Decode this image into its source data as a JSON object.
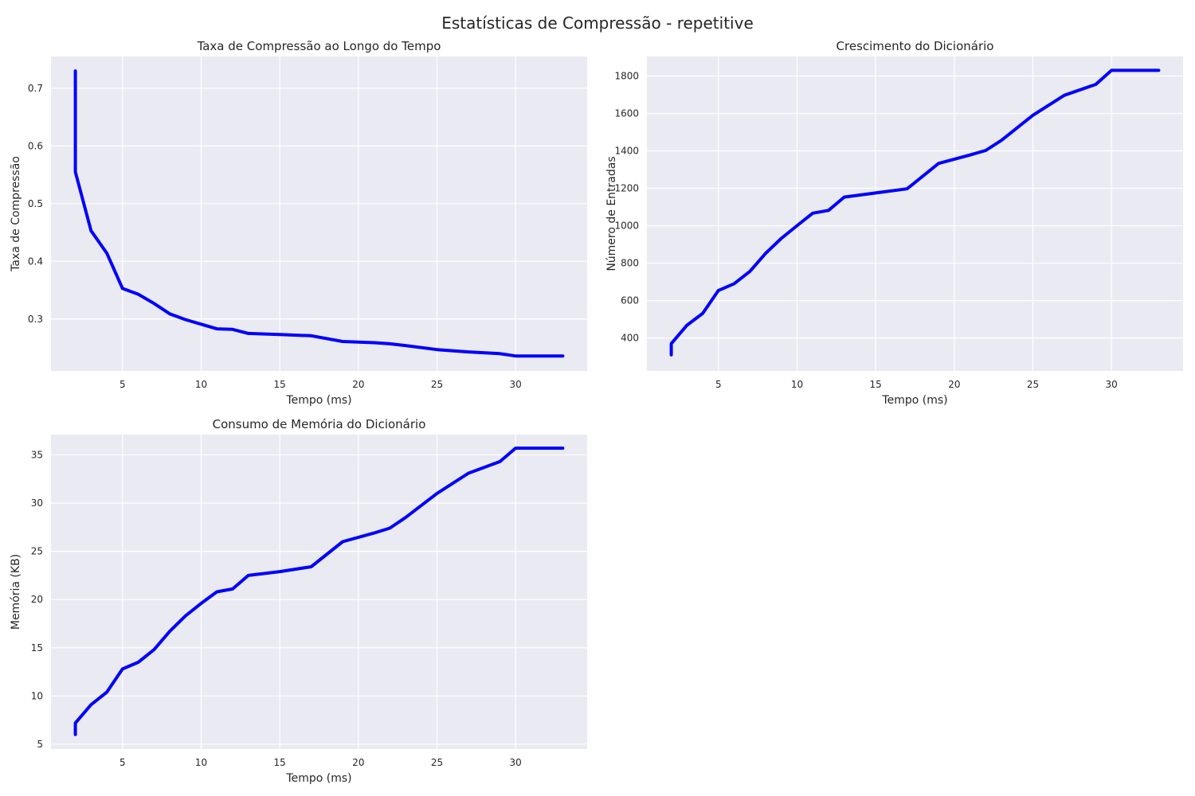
{
  "figure": {
    "title": "Estatísticas de Compressão - repetitive"
  },
  "colors": {
    "background": "#ffffff",
    "plot_background": "#eaeaf2",
    "grid": "#ffffff",
    "line": "#0000ff",
    "text": "#262626"
  },
  "chart_data": [
    {
      "id": "compression",
      "type": "line",
      "title": "Taxa de Compressão ao Longo do Tempo",
      "xlabel": "Tempo (ms)",
      "ylabel": "Taxa de Compressão",
      "xlim": [
        0.45,
        34.55
      ],
      "ylim": [
        0.21,
        0.755
      ],
      "xticks": [
        5,
        10,
        15,
        20,
        25,
        30
      ],
      "yticks": [
        0.3,
        0.4,
        0.5,
        0.6,
        0.7
      ],
      "ytick_labels": [
        "0.3",
        "0.4",
        "0.5",
        "0.6",
        "0.7"
      ],
      "grid": true,
      "series": [
        {
          "color": "#0000ff",
          "x": [
            2,
            2,
            3,
            4,
            5,
            6,
            7,
            8,
            9,
            10,
            11,
            12,
            13,
            15,
            17,
            19,
            21,
            22,
            23,
            25,
            27,
            29,
            30,
            33
          ],
          "y": [
            0.73,
            0.555,
            0.453,
            0.414,
            0.353,
            0.343,
            0.327,
            0.309,
            0.299,
            0.291,
            0.283,
            0.282,
            0.275,
            0.273,
            0.271,
            0.261,
            0.259,
            0.257,
            0.254,
            0.247,
            0.243,
            0.24,
            0.236,
            0.236
          ]
        }
      ]
    },
    {
      "id": "dictionary",
      "type": "line",
      "title": "Crescimento do Dicionário",
      "xlabel": "Tempo (ms)",
      "ylabel": "Número de Entradas",
      "xlim": [
        0.45,
        34.55
      ],
      "ylim": [
        224,
        1904
      ],
      "xticks": [
        5,
        10,
        15,
        20,
        25,
        30
      ],
      "yticks": [
        400,
        600,
        800,
        1000,
        1200,
        1400,
        1600,
        1800
      ],
      "ytick_labels": [
        "400",
        "600",
        "800",
        "1000",
        "1200",
        "1400",
        "1600",
        "1800"
      ],
      "grid": true,
      "series": [
        {
          "color": "#0000ff",
          "x": [
            2,
            2,
            3,
            4,
            5,
            6,
            7,
            8,
            9,
            10,
            11,
            12,
            13,
            15,
            17,
            19,
            21,
            22,
            23,
            25,
            27,
            29,
            30,
            33
          ],
          "y": [
            310,
            370,
            468,
            532,
            654,
            690,
            756,
            852,
            932,
            1000,
            1067,
            1082,
            1153,
            1175,
            1197,
            1333,
            1378,
            1402,
            1456,
            1590,
            1697,
            1755,
            1830,
            1830
          ]
        }
      ]
    },
    {
      "id": "memory",
      "type": "line",
      "title": "Consumo de Memória do Dicionário",
      "xlabel": "Tempo (ms)",
      "ylabel": "Memória (KB)",
      "xlim": [
        0.45,
        34.55
      ],
      "ylim": [
        4.5,
        37.1
      ],
      "xticks": [
        5,
        10,
        15,
        20,
        25,
        30
      ],
      "yticks": [
        5,
        10,
        15,
        20,
        25,
        30,
        35
      ],
      "ytick_labels": [
        "5",
        "10",
        "15",
        "20",
        "25",
        "30",
        "35"
      ],
      "grid": true,
      "series": [
        {
          "color": "#0000ff",
          "x": [
            2,
            2,
            3,
            4,
            5,
            6,
            7,
            8,
            9,
            10,
            11,
            12,
            13,
            15,
            17,
            19,
            21,
            22,
            23,
            25,
            27,
            29,
            30,
            33
          ],
          "y": [
            6.0,
            7.2,
            9.1,
            10.4,
            12.8,
            13.5,
            14.8,
            16.7,
            18.3,
            19.6,
            20.8,
            21.1,
            22.5,
            22.9,
            23.4,
            26.0,
            26.9,
            27.4,
            28.5,
            31.0,
            33.1,
            34.3,
            35.7,
            35.7
          ]
        }
      ]
    }
  ]
}
